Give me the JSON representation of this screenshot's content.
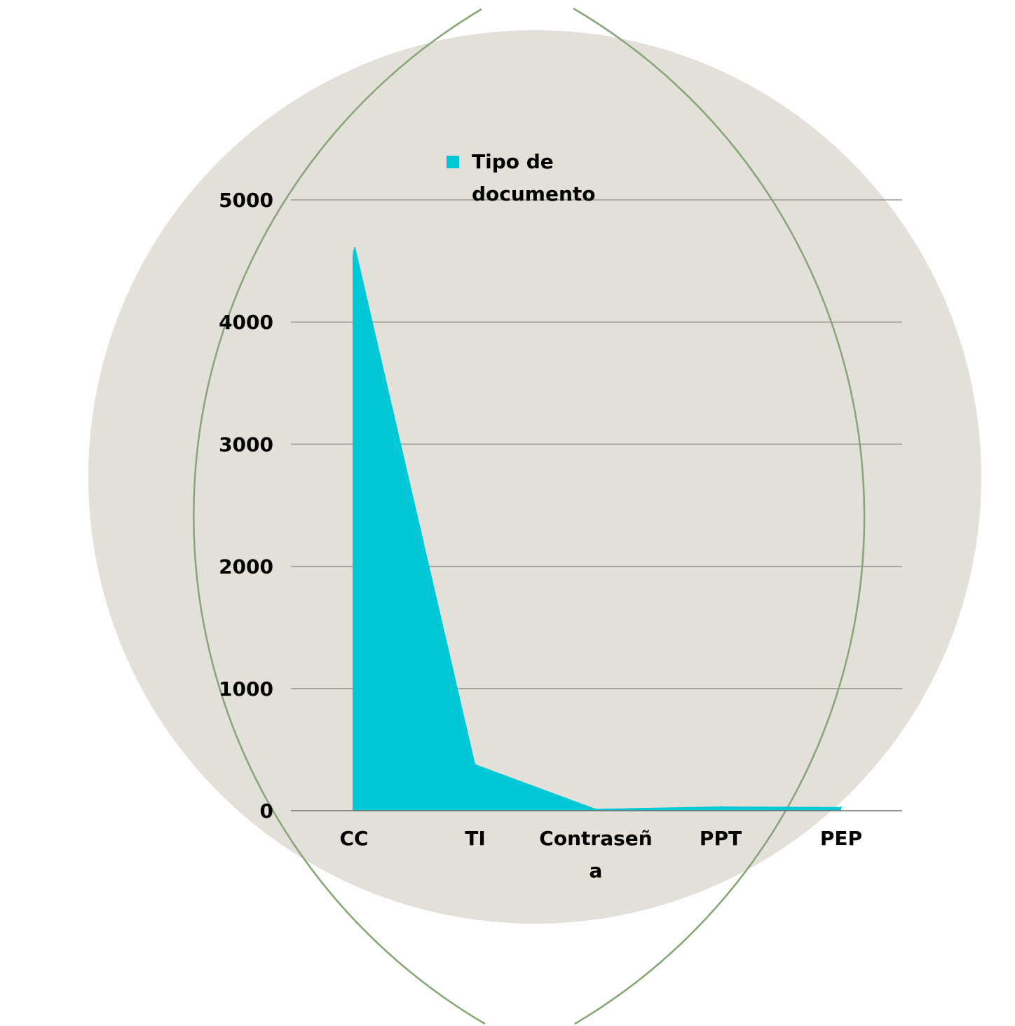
{
  "colors": {
    "background": "#ffffff",
    "backdrop_circle": "#e3e0da",
    "outer_ring": "#86a574",
    "series": "#00c8d7",
    "gridline": "#9a9a9a",
    "axis": "#6f6f6f",
    "text": "#000000"
  },
  "chart_data": {
    "type": "area",
    "categories": [
      "CC",
      "TI",
      "Contraseña",
      "PPT",
      "PEP"
    ],
    "category_label_lines": [
      [
        "CC"
      ],
      [
        "TI"
      ],
      [
        "Contraseñ",
        "a"
      ],
      [
        "PPT"
      ],
      [
        "PEP"
      ]
    ],
    "series": [
      {
        "name": "Tipo de documento",
        "values": [
          4610,
          380,
          15,
          35,
          30
        ]
      }
    ],
    "legend_lines": [
      "Tipo de",
      "documento"
    ],
    "legend_position": "top",
    "y_ticks": [
      0,
      1000,
      2000,
      3000,
      4000,
      5000
    ],
    "ylim": [
      0,
      5000
    ],
    "grid": true
  }
}
